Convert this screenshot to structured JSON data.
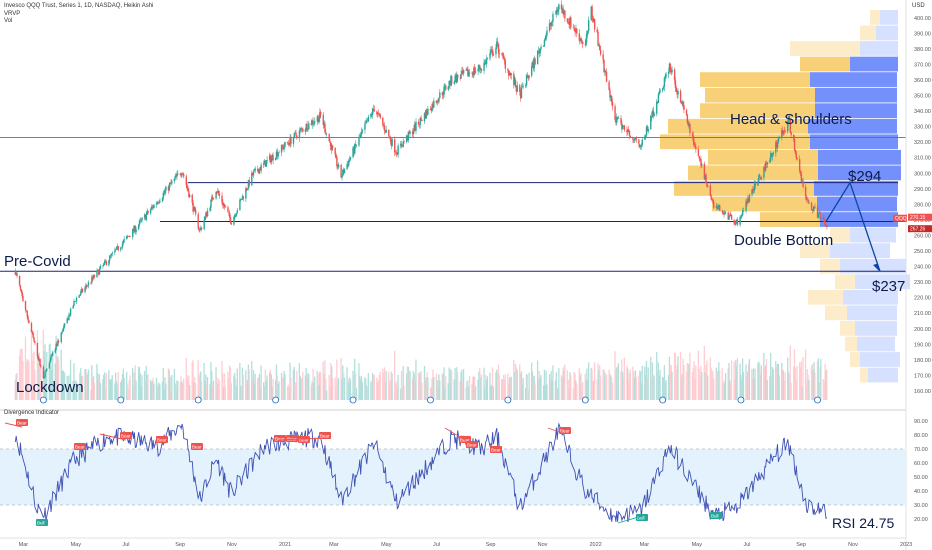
{
  "header": {
    "symbol_line": "Invesco QQQ Trust, Series 1, 1D, NASDAQ, Heikin Ashi",
    "vrvp_label": "VRVP",
    "vol_label": "Vol",
    "currency": "USD"
  },
  "indicator": {
    "title": "Divergence Indicator"
  },
  "chart_data": [
    {
      "type": "line",
      "title": "Invesco QQQ Trust, Series 1, 1D, NASDAQ, Heikin Ashi",
      "x_tick_labels": [
        "Mar",
        "May",
        "Jul",
        "Sep",
        "Nov",
        "2021",
        "Mar",
        "May",
        "Jul",
        "Sep",
        "Nov",
        "2022",
        "Mar",
        "May",
        "Jul",
        "Sep",
        "Nov",
        "2023"
      ],
      "y_tick_labels": [
        400,
        390,
        380,
        370,
        360,
        350,
        340,
        330,
        320,
        310,
        300,
        290,
        280,
        270,
        260,
        250,
        240,
        230,
        220,
        210,
        200,
        190,
        180,
        170,
        160
      ],
      "ylim": [
        160,
        410
      ],
      "price_path": [
        [
          "2020-02-19",
          237
        ],
        [
          "2020-03-23",
          169
        ],
        [
          "2020-04-30",
          219
        ],
        [
          "2020-06-08",
          245
        ],
        [
          "2020-07-13",
          267
        ],
        [
          "2020-09-02",
          302
        ],
        [
          "2020-09-23",
          263
        ],
        [
          "2020-10-12",
          290
        ],
        [
          "2020-10-30",
          269
        ],
        [
          "2020-11-24",
          299
        ],
        [
          "2021-01-25",
          330
        ],
        [
          "2021-02-12",
          337
        ],
        [
          "2021-03-08",
          298
        ],
        [
          "2021-04-16",
          342
        ],
        [
          "2021-05-12",
          314
        ],
        [
          "2021-07-16",
          360
        ],
        [
          "2021-08-20",
          368
        ],
        [
          "2021-09-07",
          382
        ],
        [
          "2021-10-04",
          350
        ],
        [
          "2021-11-19",
          408
        ],
        [
          "2021-12-20",
          382
        ],
        [
          "2021-12-27",
          405
        ],
        [
          "2022-01-24",
          335
        ],
        [
          "2022-02-24",
          318
        ],
        [
          "2022-03-29",
          369
        ],
        [
          "2022-05-20",
          280
        ],
        [
          "2022-06-16",
          268
        ],
        [
          "2022-07-29",
          315
        ],
        [
          "2022-08-16",
          334
        ],
        [
          "2022-09-06",
          282
        ],
        [
          "2022-09-30",
          267
        ]
      ],
      "horizontal_levels": [
        {
          "value": 323,
          "color": "#e53935"
        },
        {
          "value": 294,
          "color": "#1a237e"
        },
        {
          "value": 269,
          "color": "#1a237e"
        },
        {
          "value": 237,
          "color": "#1a237e"
        }
      ],
      "annotations": [
        {
          "text": "Pre-Covid"
        },
        {
          "text": "Lockdown"
        },
        {
          "text": "Head & Shoulders"
        },
        {
          "text": "$294"
        },
        {
          "text": "Double Bottom"
        },
        {
          "text": "$237"
        }
      ],
      "price_badges": [
        {
          "text": "QQQ",
          "value": 270.15
        },
        {
          "text": "270.15",
          "value": 270.15
        },
        {
          "text": "267.26",
          "value": 267.26
        }
      ],
      "projection_path": [
        294,
        269,
        237
      ],
      "volume_profile_note": "volume-by-price histogram on right side"
    },
    {
      "type": "line",
      "title": "Divergence Indicator",
      "y_tick_labels": [
        90,
        80,
        70,
        60,
        50,
        40,
        30,
        20
      ],
      "ylim": [
        20,
        90
      ],
      "overbought": 70,
      "oversold": 30,
      "rsi_path": [
        [
          "2020-02-19",
          82
        ],
        [
          "2020-03-16",
          28
        ],
        [
          "2020-03-25",
          24
        ],
        [
          "2020-04-28",
          62
        ],
        [
          "2020-06-08",
          79
        ],
        [
          "2020-07-10",
          76
        ],
        [
          "2020-08-05",
          72
        ],
        [
          "2020-09-02",
          88
        ],
        [
          "2020-09-23",
          34
        ],
        [
          "2020-10-12",
          63
        ],
        [
          "2020-10-30",
          38
        ],
        [
          "2020-12-08",
          72
        ],
        [
          "2021-01-25",
          78
        ],
        [
          "2021-02-12",
          78
        ],
        [
          "2021-03-08",
          33
        ],
        [
          "2021-04-16",
          74
        ],
        [
          "2021-05-12",
          32
        ],
        [
          "2021-07-16",
          78
        ],
        [
          "2021-08-20",
          70
        ],
        [
          "2021-09-07",
          79
        ],
        [
          "2021-10-04",
          28
        ],
        [
          "2021-11-19",
          83
        ],
        [
          "2021-12-20",
          40
        ],
        [
          "2022-01-24",
          21
        ],
        [
          "2022-02-24",
          26
        ],
        [
          "2022-03-29",
          72
        ],
        [
          "2022-05-20",
          22
        ],
        [
          "2022-06-16",
          28
        ],
        [
          "2022-07-29",
          64
        ],
        [
          "2022-08-16",
          74
        ],
        [
          "2022-09-06",
          30
        ],
        [
          "2022-09-30",
          24.75
        ]
      ],
      "annotations": [
        {
          "text": "RSI 24.75"
        }
      ],
      "bear_labels": [
        "Bear",
        "Bear",
        "Bear",
        "Bear",
        "Bear",
        "Bear",
        "Bear",
        "Bear",
        "Bear",
        "Bear",
        "Bear",
        "Bear",
        "Bear"
      ],
      "bull_labels": [
        "Bull",
        "Bull",
        "Bull",
        "Bull"
      ]
    }
  ]
}
